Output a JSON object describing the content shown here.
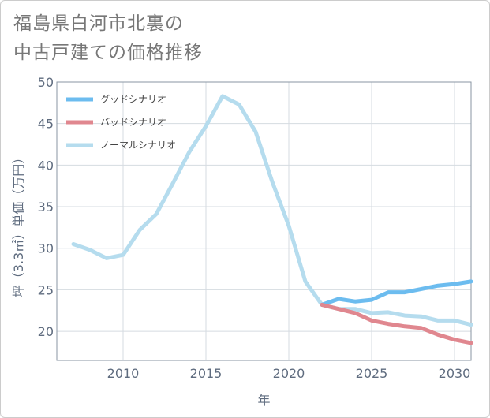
{
  "chart_data": {
    "type": "line",
    "title": "福島県白河市北裏の中古戸建ての価格推移",
    "title_lines": [
      "福島県白河市北裏の",
      "中古戸建ての価格推移"
    ],
    "xlabel": "年",
    "ylabel": "坪（3.3㎡）単価（万円）",
    "xlim": [
      2006,
      2031
    ],
    "ylim": [
      16.5,
      50
    ],
    "xticks": [
      2010,
      2015,
      2020,
      2025,
      2030
    ],
    "yticks": [
      20,
      25,
      30,
      35,
      40,
      45,
      50
    ],
    "grid": true,
    "legend_position": "top-left",
    "series": [
      {
        "name": "グッドシナリオ",
        "color": "#6cbcef",
        "x": [
          2022,
          2023,
          2024,
          2025,
          2026,
          2027,
          2028,
          2029,
          2030,
          2031
        ],
        "values": [
          23.2,
          23.9,
          23.6,
          23.8,
          24.7,
          24.7,
          25.1,
          25.5,
          25.7,
          26.0
        ]
      },
      {
        "name": "バッドシナリオ",
        "color": "#e0878f",
        "x": [
          2022,
          2023,
          2024,
          2025,
          2026,
          2027,
          2028,
          2029,
          2030,
          2031
        ],
        "values": [
          23.2,
          22.7,
          22.2,
          21.3,
          20.9,
          20.6,
          20.4,
          19.6,
          19.0,
          18.6
        ]
      },
      {
        "name": "ノーマルシナリオ",
        "color": "#b5dcee",
        "x": [
          2007,
          2008,
          2009,
          2010,
          2011,
          2012,
          2013,
          2014,
          2015,
          2016,
          2017,
          2018,
          2019,
          2020,
          2021,
          2022,
          2023,
          2024,
          2025,
          2026,
          2027,
          2028,
          2029,
          2030,
          2031
        ],
        "values": [
          30.5,
          29.8,
          28.8,
          29.2,
          32.2,
          34.1,
          37.8,
          41.6,
          44.7,
          48.3,
          47.3,
          44.0,
          38.0,
          32.7,
          26.0,
          23.2,
          22.7,
          22.7,
          22.2,
          22.3,
          21.9,
          21.8,
          21.3,
          21.3,
          20.8
        ]
      }
    ]
  }
}
